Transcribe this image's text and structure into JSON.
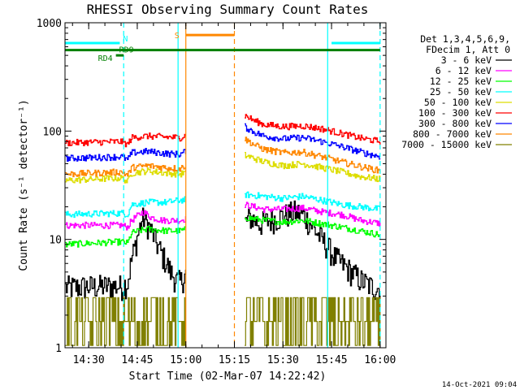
{
  "chart_data": {
    "type": "line",
    "title": "RHESSI Observing Summary Count Rates",
    "xlabel": "Start Time (02-Mar-07 14:22:42)",
    "ylabel": "Count Rate (s⁻¹ detector⁻¹)",
    "yscale": "log",
    "xlim": [
      14.378,
      16.03
    ],
    "ylim": [
      1,
      1000
    ],
    "x_unit": "hours UT",
    "x_ticks": [
      14.5,
      14.75,
      15.0,
      15.25,
      15.5,
      15.75,
      16.0
    ],
    "x_tick_labels": [
      "14:30",
      "14:45",
      "15:00",
      "15:15",
      "15:30",
      "15:45",
      "16:00"
    ],
    "y_ticks": [
      1,
      10,
      100,
      1000
    ],
    "y_tick_labels": [
      "1",
      "10",
      "100",
      "1000"
    ],
    "legend": {
      "placement": "right",
      "header": [
        "Det 1,3,4,5,6,9,",
        "FDecim 1, Att 0"
      ]
    },
    "data_gap": [
      15.0,
      15.3
    ],
    "series": [
      {
        "name": "3 - 6 keV",
        "color": "#000000",
        "x": [
          14.38,
          14.55,
          14.67,
          14.7,
          14.74,
          14.78,
          14.82,
          14.85,
          14.88,
          14.92,
          14.95,
          14.97,
          15.3,
          15.33,
          15.38,
          15.43,
          15.48,
          15.52,
          15.56,
          15.6,
          15.64,
          15.68,
          15.72,
          15.76,
          15.8,
          15.85,
          15.9,
          15.95,
          16.0
        ],
        "values": [
          3.6,
          3.7,
          3.7,
          4.0,
          9.0,
          16.0,
          12.0,
          9.0,
          7.0,
          5.0,
          4.2,
          4.0,
          14.0,
          16.0,
          14.0,
          15.0,
          16.0,
          17.0,
          18.0,
          17.0,
          14.0,
          11.0,
          9.0,
          7.0,
          6.0,
          5.0,
          4.2,
          3.7,
          3.5
        ]
      },
      {
        "name": "6 - 12 keV",
        "color": "#ff00ff",
        "x": [
          14.38,
          14.67,
          14.7,
          14.72,
          14.76,
          14.78,
          14.82,
          14.88,
          14.97,
          15.3,
          15.4,
          15.5,
          15.6,
          15.7,
          15.8,
          15.9,
          16.0
        ],
        "values": [
          13.5,
          13.5,
          13.0,
          15.0,
          17.0,
          18.0,
          16.0,
          15.0,
          15.0,
          21.0,
          19.0,
          19.0,
          19.5,
          18.0,
          17.0,
          15.0,
          14.0
        ]
      },
      {
        "name": "12 - 25 keV",
        "color": "#00ff00",
        "x": [
          14.38,
          14.67,
          14.7,
          14.72,
          14.8,
          14.9,
          14.97,
          15.3,
          15.4,
          15.5,
          15.6,
          15.7,
          15.8,
          15.9,
          16.0
        ],
        "values": [
          9.0,
          9.5,
          9.2,
          11.5,
          12.5,
          12.0,
          12.0,
          16.0,
          15.0,
          14.5,
          15.0,
          14.0,
          13.0,
          12.0,
          11.0
        ]
      },
      {
        "name": "25 - 50 keV",
        "color": "#00ffff",
        "x": [
          14.38,
          14.67,
          14.7,
          14.72,
          14.8,
          14.9,
          14.97,
          15.3,
          15.4,
          15.5,
          15.6,
          15.7,
          15.8,
          15.9,
          16.0
        ],
        "values": [
          17.0,
          17.5,
          17.0,
          21.0,
          22.0,
          22.0,
          23.0,
          26.0,
          25.0,
          24.0,
          25.0,
          23.0,
          21.0,
          20.0,
          19.0
        ]
      },
      {
        "name": "50 - 100 keV",
        "color": "#dddd00",
        "x": [
          14.38,
          14.67,
          14.7,
          14.72,
          14.8,
          14.9,
          14.97,
          15.3,
          15.4,
          15.5,
          15.6,
          15.7,
          15.8,
          15.9,
          16.0
        ],
        "values": [
          35.0,
          37.0,
          34.0,
          41.0,
          43.0,
          41.0,
          40.0,
          60.0,
          52.0,
          48.0,
          50.0,
          46.0,
          42.0,
          38.0,
          36.0
        ]
      },
      {
        "name": "100 - 300 keV",
        "color": "#ff0000",
        "x": [
          14.38,
          14.67,
          14.7,
          14.72,
          14.8,
          14.9,
          14.97,
          15.3,
          15.35,
          15.4,
          15.5,
          15.6,
          15.7,
          15.8,
          15.9,
          16.0
        ],
        "values": [
          78.0,
          80.0,
          75.0,
          87.0,
          90.0,
          88.0,
          87.0,
          140.0,
          125.0,
          115.0,
          110.0,
          112.0,
          105.0,
          95.0,
          86.0,
          80.0
        ]
      },
      {
        "name": "300 - 800 keV",
        "color": "#0000ff",
        "x": [
          14.38,
          14.67,
          14.7,
          14.72,
          14.8,
          14.9,
          14.97,
          15.3,
          15.35,
          15.4,
          15.5,
          15.6,
          15.7,
          15.8,
          15.9,
          16.0
        ],
        "values": [
          56.0,
          58.0,
          54.0,
          63.0,
          65.0,
          62.0,
          61.0,
          110.0,
          98.0,
          90.0,
          85.0,
          87.0,
          80.0,
          72.0,
          64.0,
          58.0
        ]
      },
      {
        "name": "800 - 7000 keV",
        "color": "#ff8800",
        "x": [
          14.38,
          14.67,
          14.7,
          14.72,
          14.8,
          14.9,
          14.97,
          15.3,
          15.35,
          15.4,
          15.5,
          15.6,
          15.7,
          15.8,
          15.9,
          16.0
        ],
        "values": [
          40.0,
          42.0,
          39.0,
          46.0,
          48.0,
          46.0,
          45.0,
          85.0,
          75.0,
          68.0,
          63.0,
          64.0,
          58.0,
          52.0,
          47.0,
          43.0
        ]
      },
      {
        "name": "7000 - 15000 keV",
        "color": "#808000",
        "x": [
          14.38,
          14.67,
          14.97,
          15.3,
          15.6,
          16.0
        ],
        "values": [
          1.7,
          1.7,
          1.7,
          1.7,
          1.7,
          1.7
        ]
      }
    ],
    "flags": [
      {
        "label": "N",
        "color": "#00ffff",
        "y": 650,
        "segments": [
          [
            14.378,
            14.66
          ],
          [
            15.75,
            16.0
          ]
        ]
      },
      {
        "label": "RD9",
        "color": "#008000",
        "y": 560,
        "segments": [
          [
            14.378,
            16.0
          ]
        ]
      },
      {
        "label": "RD4",
        "color": "#008000",
        "y": 500,
        "segments": [
          [
            14.64,
            14.68
          ]
        ]
      },
      {
        "label": "S",
        "color": "#ff8800",
        "y": 770,
        "segments": [
          [
            15.0,
            15.25
          ]
        ]
      }
    ],
    "markers": [
      {
        "x": 14.68,
        "color": "#00ffff",
        "style": "dashed"
      },
      {
        "x": 14.96,
        "color": "#00ffff",
        "style": "solid"
      },
      {
        "x": 15.0,
        "color": "#ff8800",
        "style": "solid"
      },
      {
        "x": 15.25,
        "color": "#ff8800",
        "style": "dashed"
      },
      {
        "x": 15.73,
        "color": "#00ffff",
        "style": "solid"
      },
      {
        "x": 16.0,
        "color": "#00ffff",
        "style": "dashed"
      }
    ],
    "timestamp": "14-Oct-2021 09:04"
  }
}
